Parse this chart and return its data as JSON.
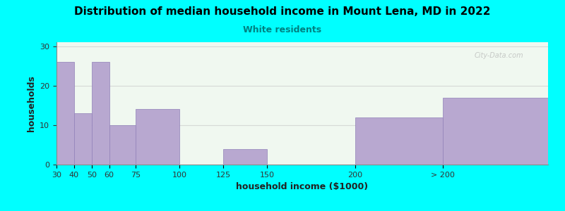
{
  "title": "Distribution of median household income in Mount Lena, MD in 2022",
  "subtitle": "White residents",
  "xlabel": "household income ($1000)",
  "ylabel": "households",
  "background_outer": "#00FFFF",
  "background_inner_top": "#e8f5e8",
  "background_inner_bottom": "#ffffff",
  "bar_color": "#b8a8d0",
  "bar_edge_color": "#9080b8",
  "subtitle_color": "#008080",
  "title_color": "#000000",
  "watermark": "City-Data.com",
  "bar_labels": [
    "30",
    "40",
    "50",
    "60",
    "75",
    "100",
    "125",
    "150",
    "200",
    "> 200"
  ],
  "bar_positions": [
    30,
    40,
    50,
    60,
    75,
    100,
    125,
    150,
    200,
    250
  ],
  "bar_widths": [
    10,
    10,
    10,
    15,
    25,
    25,
    25,
    50,
    50,
    60
  ],
  "bar_heights": [
    26,
    13,
    26,
    10,
    14,
    0,
    4,
    0,
    12,
    17
  ],
  "ylim": [
    0,
    31
  ],
  "yticks": [
    0,
    10,
    20,
    30
  ],
  "grid_color": "#cccccc",
  "grid_alpha": 0.7
}
